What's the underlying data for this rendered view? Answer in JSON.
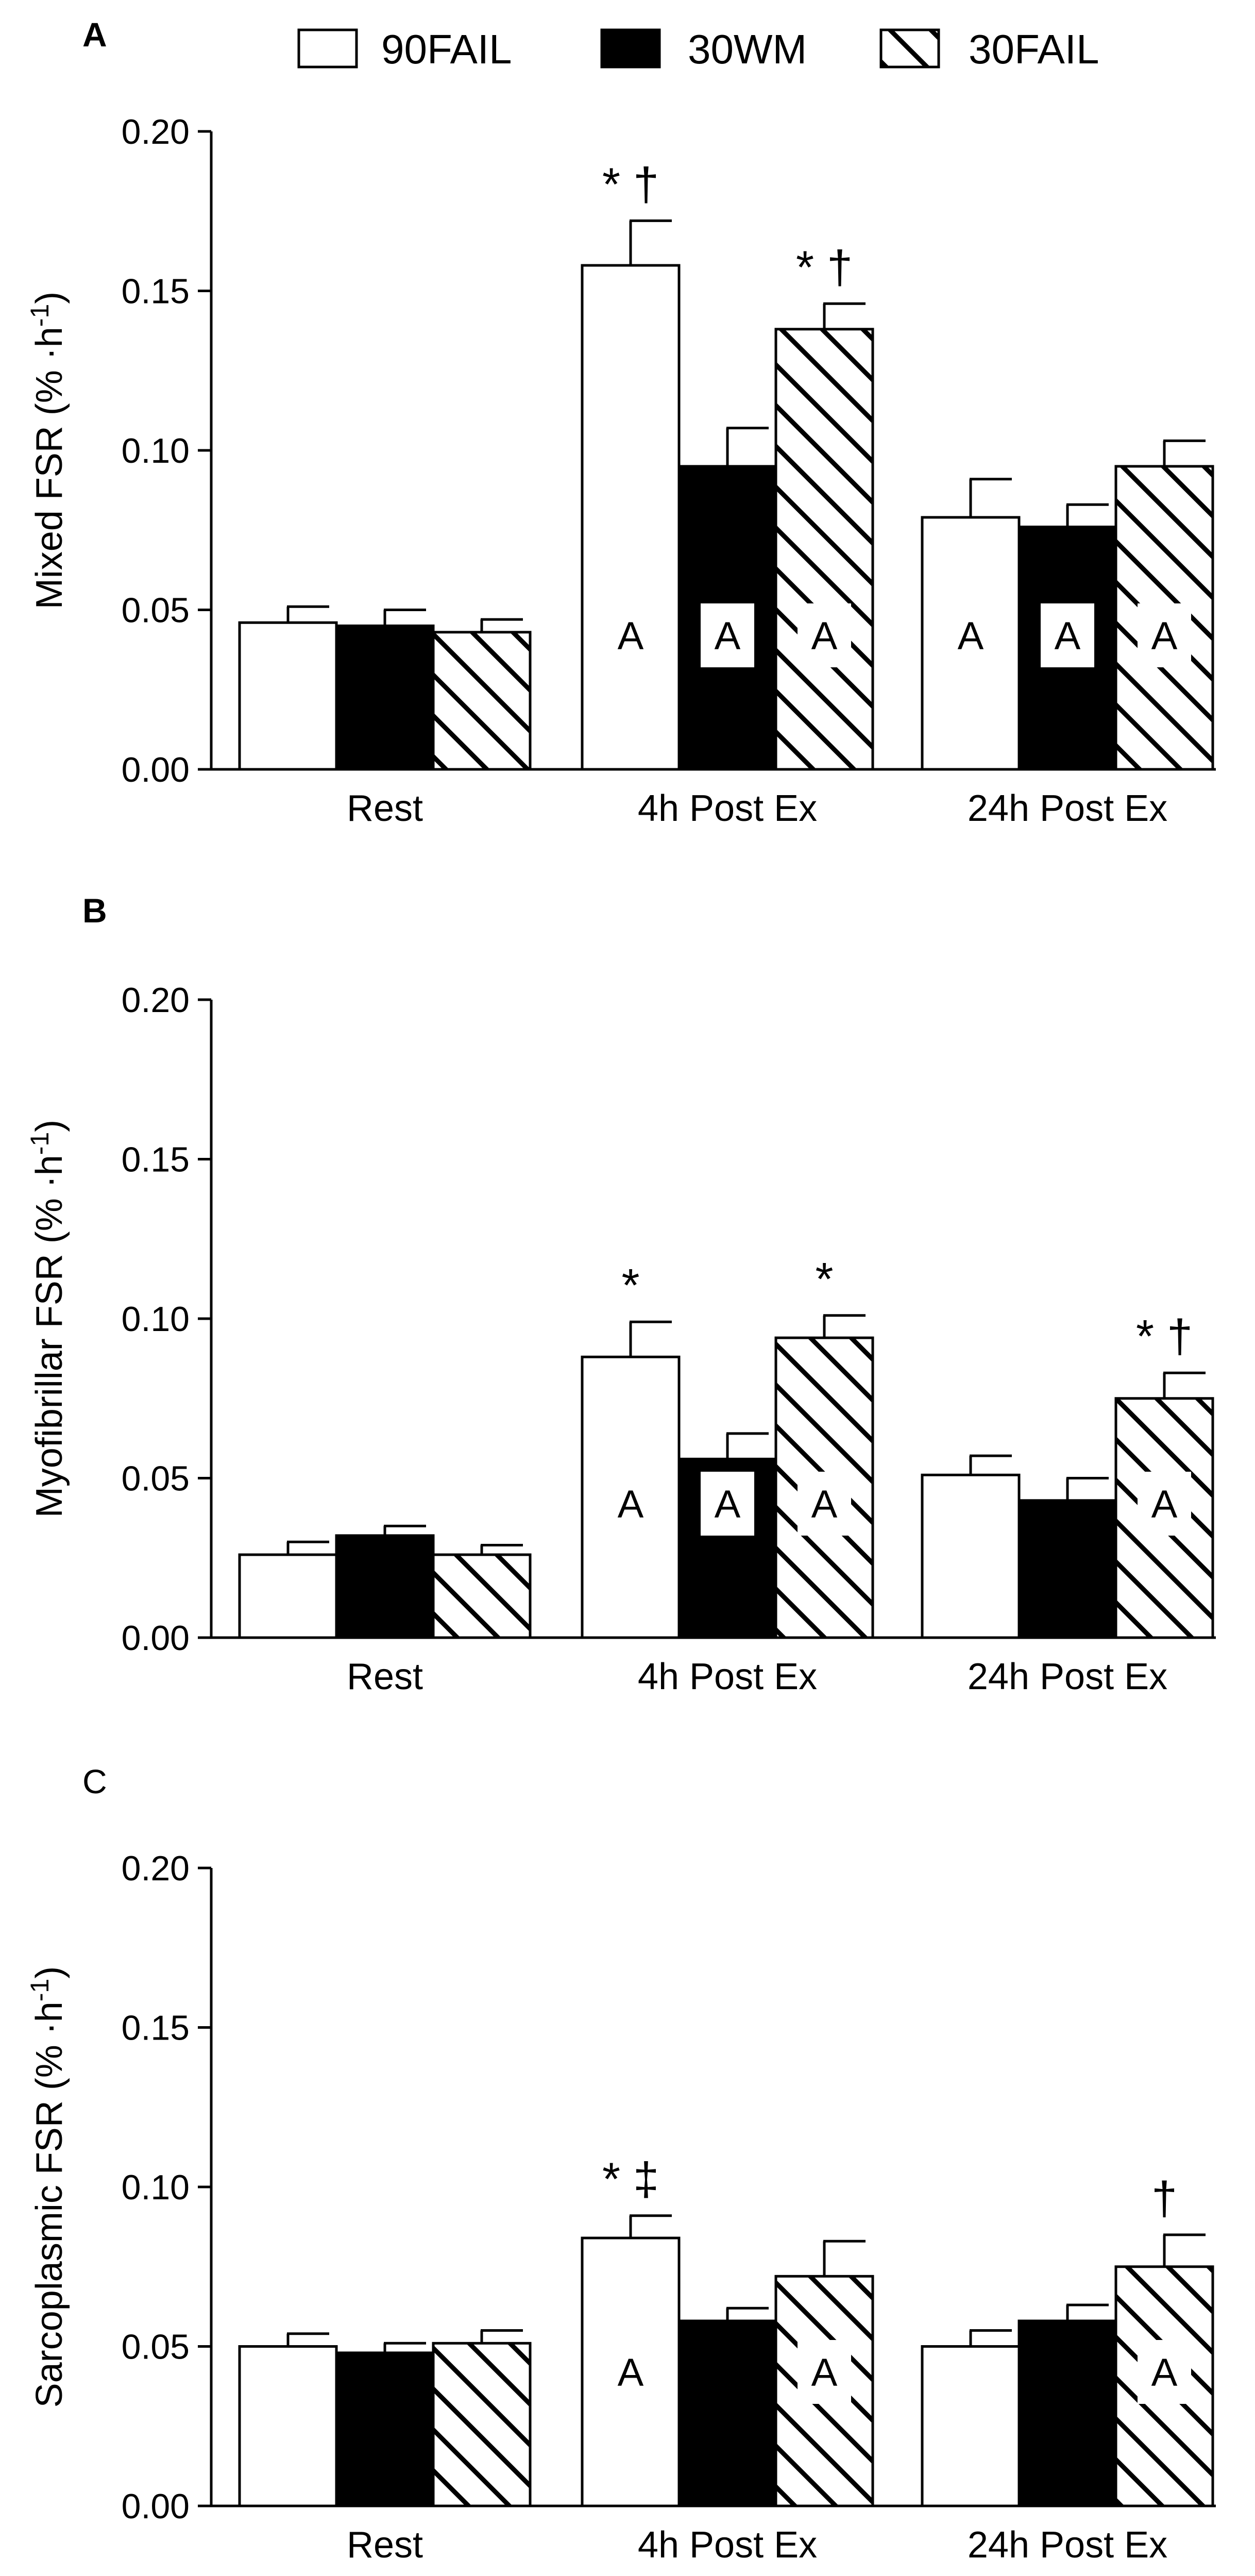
{
  "legend": [
    {
      "label": "90FAIL",
      "fill": "white"
    },
    {
      "label": "30WM",
      "fill": "black"
    },
    {
      "label": "30FAIL",
      "fill": "hatch"
    }
  ],
  "chart_data": [
    {
      "type": "bar",
      "panel": "A",
      "panel_bold": true,
      "ylabel": "Mixed FSR (% ·h",
      "ylabel_sup": "-1",
      "ylabel_close": ")",
      "ylim": [
        0,
        0.2
      ],
      "yticks": [
        "0.00",
        "0.05",
        "0.10",
        "0.15",
        "0.20"
      ],
      "categories": [
        "Rest",
        "4h Post Ex",
        "24h Post Ex"
      ],
      "series": [
        {
          "name": "90FAIL",
          "values": [
            0.046,
            0.158,
            0.079
          ],
          "errors": [
            0.005,
            0.014,
            0.012
          ]
        },
        {
          "name": "30WM",
          "values": [
            0.045,
            0.095,
            0.076
          ],
          "errors": [
            0.005,
            0.012,
            0.007
          ]
        },
        {
          "name": "30FAIL",
          "values": [
            0.043,
            0.138,
            0.095
          ],
          "errors": [
            0.004,
            0.008,
            0.008
          ]
        }
      ],
      "top_annotations": [
        {
          "category": 1,
          "series": 0,
          "text": "* †"
        },
        {
          "category": 1,
          "series": 2,
          "text": "* †"
        }
      ],
      "bar_letters": [
        {
          "category": 1,
          "series": 0,
          "text": "A"
        },
        {
          "category": 1,
          "series": 1,
          "text": "A"
        },
        {
          "category": 1,
          "series": 2,
          "text": "A"
        },
        {
          "category": 2,
          "series": 0,
          "text": "A"
        },
        {
          "category": 2,
          "series": 1,
          "text": "A"
        },
        {
          "category": 2,
          "series": 2,
          "text": "A"
        }
      ]
    },
    {
      "type": "bar",
      "panel": "B",
      "panel_bold": true,
      "ylabel": "Myofibrillar FSR (% ·h",
      "ylabel_sup": "-1",
      "ylabel_close": ")",
      "ylim": [
        0,
        0.2
      ],
      "yticks": [
        "0.00",
        "0.05",
        "0.10",
        "0.15",
        "0.20"
      ],
      "categories": [
        "Rest",
        "4h Post Ex",
        "24h Post Ex"
      ],
      "series": [
        {
          "name": "90FAIL",
          "values": [
            0.026,
            0.088,
            0.051
          ],
          "errors": [
            0.004,
            0.011,
            0.006
          ]
        },
        {
          "name": "30WM",
          "values": [
            0.032,
            0.056,
            0.043
          ],
          "errors": [
            0.003,
            0.008,
            0.007
          ]
        },
        {
          "name": "30FAIL",
          "values": [
            0.026,
            0.094,
            0.075
          ],
          "errors": [
            0.003,
            0.007,
            0.008
          ]
        }
      ],
      "top_annotations": [
        {
          "category": 1,
          "series": 0,
          "text": "*"
        },
        {
          "category": 1,
          "series": 2,
          "text": "*"
        },
        {
          "category": 2,
          "series": 2,
          "text": "* †"
        }
      ],
      "bar_letters": [
        {
          "category": 1,
          "series": 0,
          "text": "A"
        },
        {
          "category": 1,
          "series": 1,
          "text": "A"
        },
        {
          "category": 1,
          "series": 2,
          "text": "A"
        },
        {
          "category": 2,
          "series": 2,
          "text": "A"
        }
      ]
    },
    {
      "type": "bar",
      "panel": "C",
      "panel_bold": false,
      "ylabel": "Sarcoplasmic FSR (% ·h",
      "ylabel_sup": "-1",
      "ylabel_close": ")",
      "ylim": [
        0,
        0.2
      ],
      "yticks": [
        "0.00",
        "0.05",
        "0.10",
        "0.15",
        "0.20"
      ],
      "categories": [
        "Rest",
        "4h Post Ex",
        "24h Post Ex"
      ],
      "series": [
        {
          "name": "90FAIL",
          "values": [
            0.05,
            0.084,
            0.05
          ],
          "errors": [
            0.004,
            0.007,
            0.005
          ]
        },
        {
          "name": "30WM",
          "values": [
            0.048,
            0.058,
            0.058
          ],
          "errors": [
            0.003,
            0.004,
            0.005
          ]
        },
        {
          "name": "30FAIL",
          "values": [
            0.051,
            0.072,
            0.075
          ],
          "errors": [
            0.004,
            0.011,
            0.01
          ]
        }
      ],
      "top_annotations": [
        {
          "category": 1,
          "series": 0,
          "text": "* ‡"
        },
        {
          "category": 2,
          "series": 2,
          "text": "†"
        }
      ],
      "bar_letters": [
        {
          "category": 1,
          "series": 0,
          "text": "A"
        },
        {
          "category": 1,
          "series": 2,
          "text": "A"
        },
        {
          "category": 2,
          "series": 2,
          "text": "A"
        }
      ]
    }
  ]
}
